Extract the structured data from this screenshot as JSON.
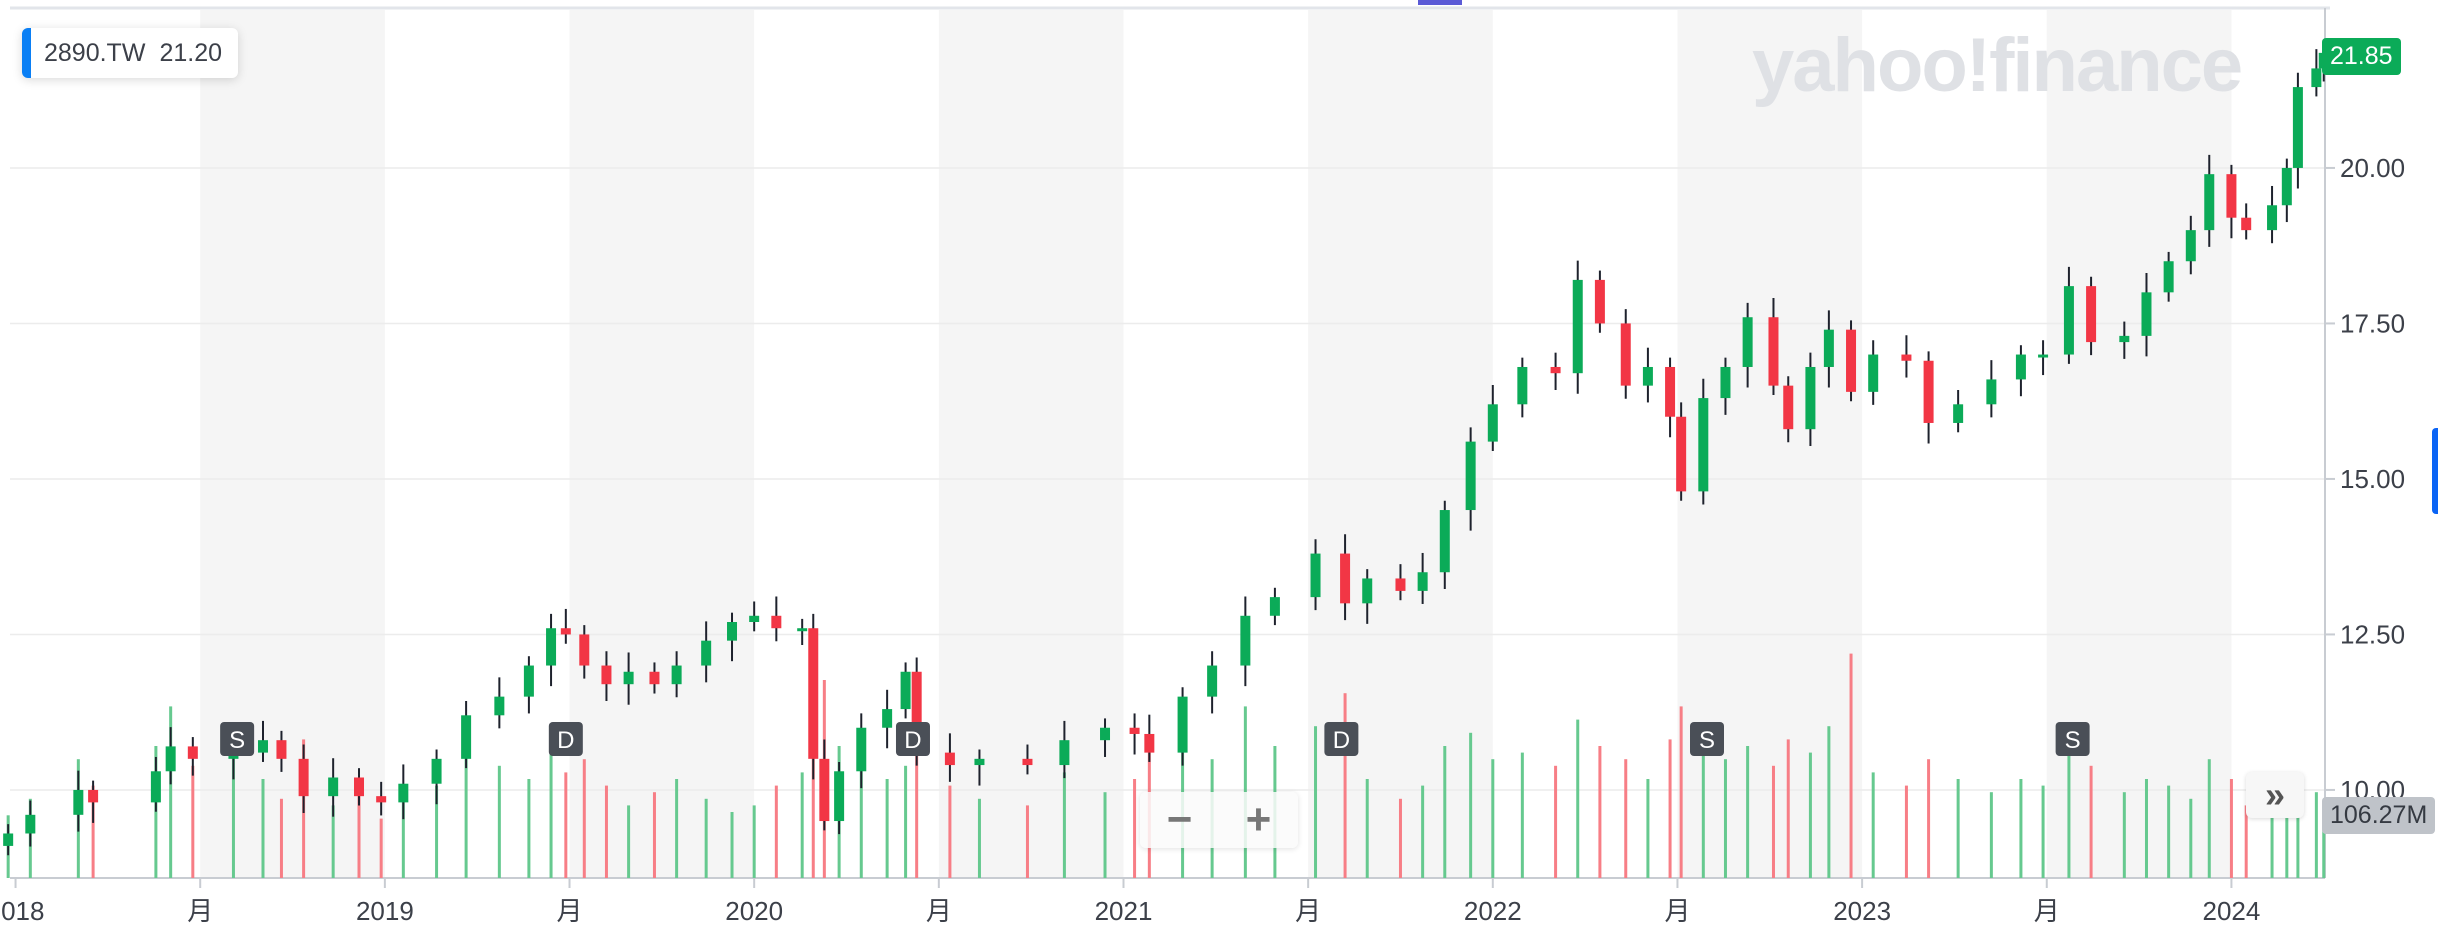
{
  "chart_data": {
    "type": "candlestick",
    "ticker": "2890.TW",
    "hover_value": "21.20",
    "last_price_label": "21.85",
    "last_volume_label": "106.27M",
    "watermark": "yahoo!finance",
    "ylim": [
      8.0,
      22.0
    ],
    "y_ticks": [
      "10.00",
      "12.50",
      "15.00",
      "17.50",
      "20.00"
    ],
    "y_tick_values": [
      10,
      12.5,
      15,
      17.5,
      20
    ],
    "x_ticks": [
      {
        "t": 2018.0,
        "label": "2018"
      },
      {
        "t": 2018.5,
        "label": "月"
      },
      {
        "t": 2019.0,
        "label": "2019"
      },
      {
        "t": 2019.5,
        "label": "月"
      },
      {
        "t": 2020.0,
        "label": "2020"
      },
      {
        "t": 2020.5,
        "label": "月"
      },
      {
        "t": 2021.0,
        "label": "2021"
      },
      {
        "t": 2021.5,
        "label": "月"
      },
      {
        "t": 2022.0,
        "label": "2022"
      },
      {
        "t": 2022.5,
        "label": "月"
      },
      {
        "t": 2023.0,
        "label": "2023"
      },
      {
        "t": 2023.5,
        "label": "月"
      },
      {
        "t": 2024.0,
        "label": "2024"
      }
    ],
    "events": [
      {
        "t": 2018.6,
        "label": "S"
      },
      {
        "t": 2019.49,
        "label": "D"
      },
      {
        "t": 2020.43,
        "label": "D"
      },
      {
        "t": 2021.59,
        "label": "D"
      },
      {
        "t": 2022.58,
        "label": "S"
      },
      {
        "t": 2023.57,
        "label": "S"
      }
    ],
    "candles": [
      [
        2017.98,
        9.3,
        95
      ],
      [
        2018.04,
        9.6,
        120
      ],
      [
        2018.17,
        10.0,
        180
      ],
      [
        2018.21,
        9.8,
        140
      ],
      [
        2018.38,
        10.3,
        200
      ],
      [
        2018.42,
        10.7,
        260
      ],
      [
        2018.48,
        10.5,
        170
      ],
      [
        2018.59,
        10.6,
        230
      ],
      [
        2018.67,
        10.8,
        150
      ],
      [
        2018.72,
        10.5,
        120
      ],
      [
        2018.78,
        9.9,
        210
      ],
      [
        2018.86,
        10.2,
        110
      ],
      [
        2018.93,
        9.9,
        130
      ],
      [
        2018.99,
        9.8,
        90
      ],
      [
        2019.05,
        10.1,
        120
      ],
      [
        2019.14,
        10.5,
        140
      ],
      [
        2019.22,
        11.2,
        200
      ],
      [
        2019.31,
        11.5,
        170
      ],
      [
        2019.39,
        12.0,
        150
      ],
      [
        2019.45,
        12.6,
        190
      ],
      [
        2019.49,
        12.5,
        160
      ],
      [
        2019.54,
        12.0,
        180
      ],
      [
        2019.6,
        11.7,
        140
      ],
      [
        2019.66,
        11.9,
        110
      ],
      [
        2019.73,
        11.7,
        130
      ],
      [
        2019.79,
        12.0,
        150
      ],
      [
        2019.87,
        12.4,
        120
      ],
      [
        2019.94,
        12.7,
        100
      ],
      [
        2020.0,
        12.8,
        110
      ],
      [
        2020.06,
        12.6,
        140
      ],
      [
        2020.13,
        12.6,
        160
      ],
      [
        2020.16,
        10.5,
        240
      ],
      [
        2020.19,
        9.5,
        300
      ],
      [
        2020.23,
        10.3,
        200
      ],
      [
        2020.29,
        11.0,
        180
      ],
      [
        2020.36,
        11.3,
        150
      ],
      [
        2020.41,
        11.9,
        170
      ],
      [
        2020.44,
        10.6,
        230
      ],
      [
        2020.53,
        10.4,
        140
      ],
      [
        2020.61,
        10.5,
        120
      ],
      [
        2020.74,
        10.4,
        110
      ],
      [
        2020.84,
        10.8,
        160
      ],
      [
        2020.95,
        11.0,
        130
      ],
      [
        2021.03,
        10.9,
        150
      ],
      [
        2021.07,
        10.6,
        190
      ],
      [
        2021.16,
        11.5,
        220
      ],
      [
        2021.24,
        12.0,
        180
      ],
      [
        2021.33,
        12.8,
        260
      ],
      [
        2021.41,
        13.1,
        200
      ],
      [
        2021.52,
        13.8,
        230
      ],
      [
        2021.6,
        13.0,
        280
      ],
      [
        2021.66,
        13.4,
        150
      ],
      [
        2021.75,
        13.2,
        120
      ],
      [
        2021.81,
        13.5,
        140
      ],
      [
        2021.87,
        14.5,
        200
      ],
      [
        2021.94,
        15.6,
        220
      ],
      [
        2022.0,
        16.2,
        180
      ],
      [
        2022.08,
        16.8,
        190
      ],
      [
        2022.17,
        16.7,
        170
      ],
      [
        2022.23,
        18.2,
        240
      ],
      [
        2022.29,
        17.5,
        200
      ],
      [
        2022.36,
        16.5,
        180
      ],
      [
        2022.42,
        16.8,
        150
      ],
      [
        2022.48,
        16.0,
        210
      ],
      [
        2022.51,
        14.8,
        260
      ],
      [
        2022.57,
        16.3,
        220
      ],
      [
        2022.63,
        16.8,
        180
      ],
      [
        2022.69,
        17.6,
        200
      ],
      [
        2022.76,
        16.5,
        170
      ],
      [
        2022.8,
        15.8,
        210
      ],
      [
        2022.86,
        16.8,
        190
      ],
      [
        2022.91,
        17.4,
        230
      ],
      [
        2022.97,
        16.4,
        340
      ],
      [
        2023.03,
        17.0,
        160
      ],
      [
        2023.12,
        16.9,
        140
      ],
      [
        2023.18,
        15.9,
        180
      ],
      [
        2023.26,
        16.2,
        150
      ],
      [
        2023.35,
        16.6,
        130
      ],
      [
        2023.43,
        17.0,
        150
      ],
      [
        2023.49,
        17.0,
        140
      ],
      [
        2023.56,
        18.1,
        230
      ],
      [
        2023.62,
        17.2,
        170
      ],
      [
        2023.71,
        17.3,
        130
      ],
      [
        2023.77,
        18.0,
        150
      ],
      [
        2023.83,
        18.5,
        140
      ],
      [
        2023.89,
        19.0,
        120
      ],
      [
        2023.94,
        19.9,
        180
      ],
      [
        2024.0,
        19.2,
        150
      ],
      [
        2024.04,
        19.0,
        110
      ],
      [
        2024.11,
        19.4,
        100
      ],
      [
        2024.15,
        20.0,
        120
      ],
      [
        2024.18,
        21.3,
        140
      ],
      [
        2024.23,
        21.6,
        130
      ],
      [
        2024.25,
        21.85,
        106.27
      ]
    ],
    "colors": {
      "up": "#0bab58",
      "down": "#f23645",
      "up_vol": "#66c98f",
      "down_vol": "#f77e86",
      "band": "#f5f5f5",
      "grid": "#ececec"
    }
  }
}
